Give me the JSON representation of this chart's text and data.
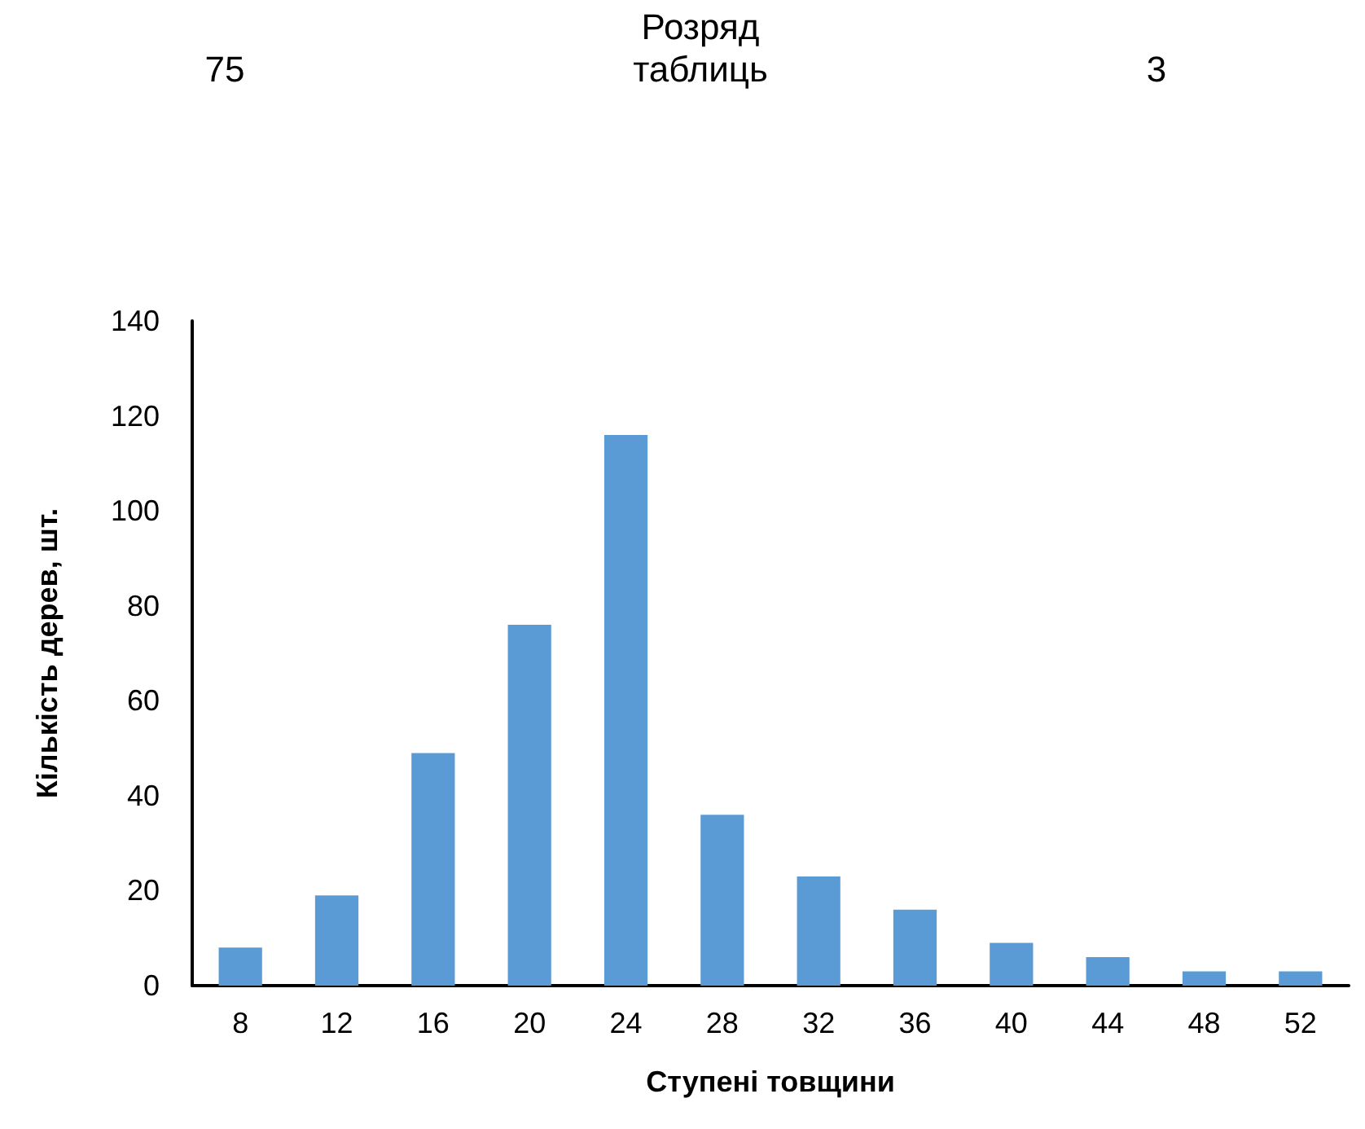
{
  "chart_data": {
    "type": "bar",
    "xlabel": "Ступені товщини",
    "ylabel": "Кількість дерев, шт.",
    "categories": [
      "8",
      "12",
      "16",
      "20",
      "24",
      "28",
      "32",
      "36",
      "40",
      "44",
      "48",
      "52"
    ],
    "values": [
      8,
      19,
      49,
      76,
      116,
      36,
      23,
      16,
      9,
      6,
      3,
      3
    ],
    "color": "#5b9bd5",
    "ylim": [
      0,
      140
    ],
    "yticks": [
      0,
      20,
      40,
      60,
      80,
      100,
      120,
      140
    ],
    "grid": false,
    "annotations": [
      "75",
      "Розряд таблиць",
      "3"
    ]
  }
}
